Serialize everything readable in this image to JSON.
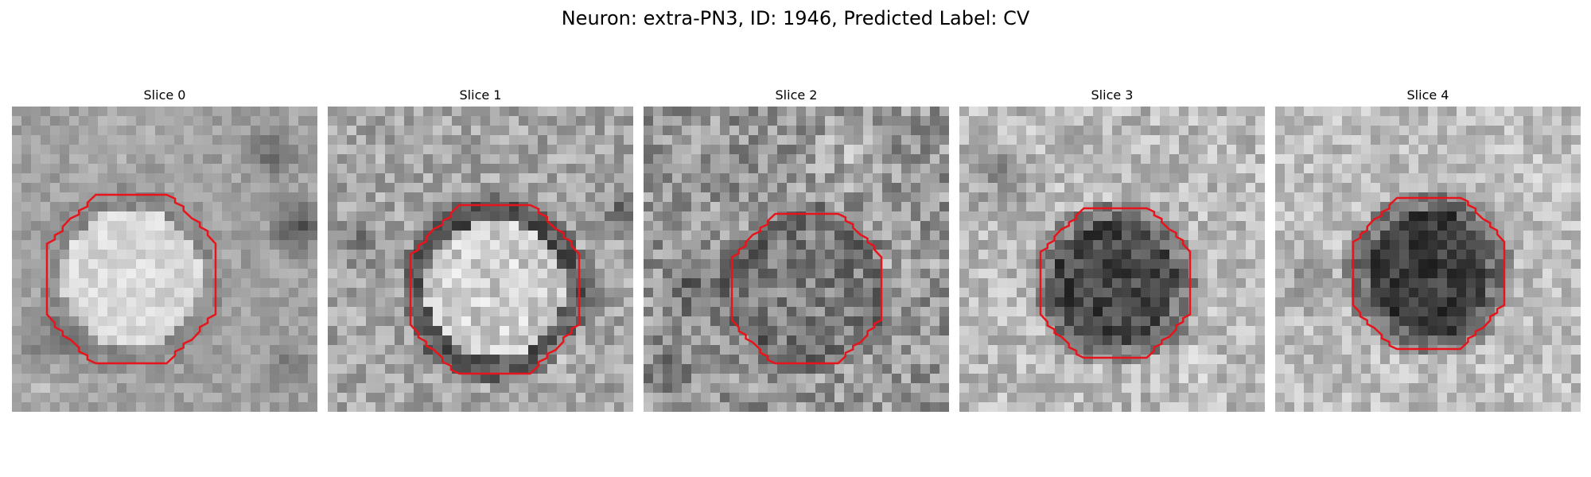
{
  "figure": {
    "title": "Neuron: extra-PN3, ID: 1946, Predicted Label: CV"
  },
  "colors": {
    "outline": "#e8141b",
    "grayscale_min": "#000000",
    "grayscale_max": "#ffffff"
  },
  "panels": [
    {
      "title": "Slice 0",
      "interior": "bright",
      "noise": "low"
    },
    {
      "title": "Slice 1",
      "interior": "bright",
      "noise": "medium"
    },
    {
      "title": "Slice 2",
      "interior": "mid",
      "noise": "high"
    },
    {
      "title": "Slice 3",
      "interior": "dark",
      "noise": "medium"
    },
    {
      "title": "Slice 4",
      "interior": "dark",
      "noise": "medium"
    }
  ]
}
